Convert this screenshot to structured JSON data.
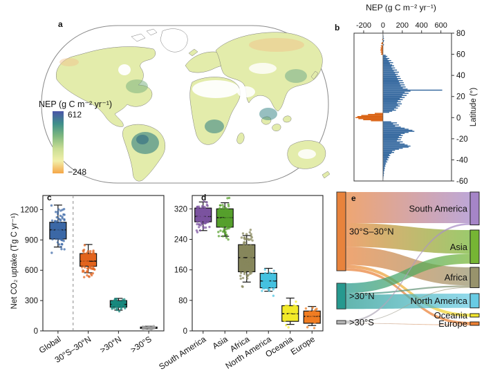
{
  "figure": {
    "background": "#ffffff"
  },
  "chart_data": [
    {
      "panel": "a",
      "type": "map",
      "label": "a",
      "legend_title": "NEP (g C m⁻² yr⁻¹)",
      "legend_max": "612",
      "legend_min": "−248",
      "colorbar": [
        "#4a55a8",
        "#3f8f8a",
        "#7fb87f",
        "#c9dd94",
        "#f2efa9",
        "#f5a647"
      ],
      "land_color": "#e3ecab",
      "outline_color": "#888888"
    },
    {
      "panel": "b",
      "type": "bar",
      "orientation": "horizontal",
      "label": "b",
      "title": "NEP (g C m⁻² yr⁻¹)",
      "xticks": [
        -200,
        0,
        200,
        400,
        600
      ],
      "xlim": [
        -300,
        710
      ],
      "ylabel": "Latitude (°)",
      "yticks": [
        80,
        60,
        40,
        20,
        0,
        -20,
        -40,
        -60
      ],
      "ylim": [
        -60,
        80
      ],
      "lat_start": 78,
      "lat_step": -1,
      "pos_color": "#33679e",
      "neg_color": "#d95f0e",
      "values": [
        3,
        6,
        4,
        10,
        -8,
        12,
        8,
        -12,
        -18,
        10,
        -22,
        -15,
        -25,
        -20,
        -28,
        -18,
        -24,
        -15,
        -20,
        28,
        45,
        32,
        65,
        48,
        85,
        62,
        105,
        72,
        95,
        115,
        88,
        125,
        98,
        145,
        112,
        165,
        125,
        155,
        135,
        175,
        145,
        185,
        155,
        205,
        165,
        215,
        175,
        225,
        185,
        235,
        205,
        255,
        614,
        285,
        225,
        265,
        205,
        245,
        195,
        225,
        175,
        205,
        155,
        185,
        145,
        195,
        155,
        175,
        135,
        155,
        115,
        135,
        95,
        65,
        -85,
        -155,
        -225,
        -265,
        -285,
        -255,
        -205,
        -125,
        85,
        145,
        105,
        165,
        125,
        185,
        225,
        265,
        305,
        325,
        265,
        225,
        185,
        205,
        165,
        195,
        155,
        185,
        145,
        205,
        175,
        225,
        255,
        285,
        265,
        205,
        165,
        125,
        95,
        115,
        85,
        65,
        75,
        55,
        65,
        45,
        55,
        35,
        45,
        28,
        32,
        22,
        26,
        16,
        20,
        14,
        16,
        10,
        9,
        11,
        7,
        8,
        5,
        4,
        3
      ]
    },
    {
      "panel": "c",
      "type": "box",
      "label": "c",
      "ylabel": "Net CO₂ uptake (Tg C yr⁻¹)",
      "yticks": [
        0,
        300,
        600,
        900,
        1200
      ],
      "ylim": [
        0,
        1340
      ],
      "dashed_separator_after_index": 0,
      "categories": [
        {
          "name": "Global",
          "color": "#3c68a6",
          "low": 830,
          "q1": 910,
          "median": 1000,
          "q3": 1075,
          "high": 1245,
          "n": 90
        },
        {
          "name": "30°S–30°N",
          "color": "#e2641e",
          "low": 575,
          "q1": 640,
          "median": 690,
          "q3": 765,
          "high": 855,
          "n": 90
        },
        {
          "name": ">30°N",
          "color": "#17897e",
          "low": 205,
          "q1": 235,
          "median": 262,
          "q3": 300,
          "high": 322,
          "n": 70
        },
        {
          "name": ">30°S",
          "color": "#222222",
          "scatter_color": "#9a9a9a",
          "low": 18,
          "q1": 24,
          "median": 30,
          "q3": 38,
          "high": 46,
          "n": 50
        }
      ]
    },
    {
      "panel": "d",
      "type": "box",
      "label": "d",
      "yticks": [
        0,
        80,
        160,
        240,
        320
      ],
      "ylim": [
        0,
        355
      ],
      "categories": [
        {
          "name": "South America",
          "color": "#7b539f",
          "low": 263,
          "q1": 286,
          "median": 300,
          "q3": 322,
          "high": 338,
          "n": 110
        },
        {
          "name": "Asia",
          "color": "#56a02c",
          "low": 248,
          "q1": 272,
          "median": 297,
          "q3": 320,
          "high": 336,
          "n": 110
        },
        {
          "name": "Africa",
          "color": "#86865c",
          "low": 128,
          "q1": 155,
          "median": 192,
          "q3": 226,
          "high": 250,
          "n": 120
        },
        {
          "name": "North America",
          "color": "#45c2e0",
          "low": 104,
          "q1": 113,
          "median": 131,
          "q3": 151,
          "high": 164,
          "n": 70
        },
        {
          "name": "Oceania",
          "color": "#f2ea2a",
          "low": 17,
          "q1": 25,
          "median": 45,
          "q3": 66,
          "high": 86,
          "n": 45
        },
        {
          "name": "Europe",
          "color": "#f07d23",
          "low": 14,
          "q1": 20,
          "median": 38,
          "q3": 52,
          "high": 64,
          "n": 45
        }
      ]
    },
    {
      "panel": "e",
      "type": "sankey",
      "label": "e",
      "left_nodes": [
        {
          "id": "tropics",
          "label": "30°S–30°N",
          "color": "#e8833c",
          "y": 8
        },
        {
          "id": "north",
          "label": ">30°N",
          "color": "#26998f",
          "y": 140
        },
        {
          "id": "south",
          "label": ">30°S",
          "color": "#b6b6b6",
          "y": 194
        }
      ],
      "right_nodes": [
        {
          "id": "sa",
          "label": "South America",
          "color": "#a585c7",
          "y": 8
        },
        {
          "id": "asia",
          "label": "Asia",
          "color": "#76b534",
          "y": 63
        },
        {
          "id": "africa",
          "label": "Africa",
          "color": "#98936c",
          "y": 117
        },
        {
          "id": "na",
          "label": "North America",
          "color": "#68cbe4",
          "y": 155
        },
        {
          "id": "oceania",
          "label": "Oceania",
          "color": "#f2e52e",
          "y": 184
        },
        {
          "id": "europe",
          "label": "Europe",
          "color": "#ec8033",
          "y": 196
        }
      ],
      "flows": [
        {
          "from": "tropics",
          "to": "sa",
          "value": 278
        },
        {
          "from": "tropics",
          "to": "asia",
          "value": 212
        },
        {
          "from": "tropics",
          "to": "africa",
          "value": 162
        },
        {
          "from": "tropics",
          "to": "oceania",
          "value": 28
        },
        {
          "from": "tropics",
          "to": "europe",
          "value": 24
        },
        {
          "from": "north",
          "to": "asia",
          "value": 88
        },
        {
          "from": "north",
          "to": "africa",
          "value": 14
        },
        {
          "from": "north",
          "to": "na",
          "value": 128
        },
        {
          "from": "south",
          "to": "sa",
          "value": 16
        },
        {
          "from": "south",
          "to": "africa",
          "value": 6
        },
        {
          "from": "south",
          "to": "europe",
          "value": 6
        }
      ]
    }
  ]
}
